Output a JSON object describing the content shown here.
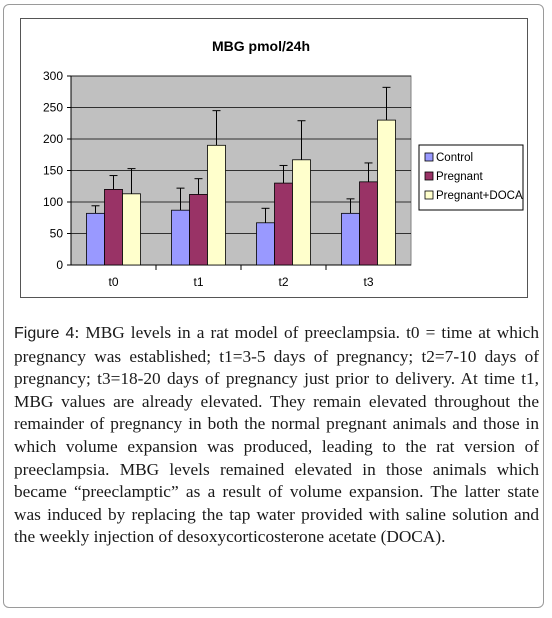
{
  "chart_data": {
    "type": "bar",
    "title": "MBG pmol/24h",
    "categories": [
      "t0",
      "t1",
      "t2",
      "t3"
    ],
    "series": [
      {
        "name": "Control",
        "color": "#9999ff",
        "values": [
          82,
          87,
          67,
          82
        ],
        "errors": [
          12,
          35,
          23,
          23
        ]
      },
      {
        "name": "Pregnant",
        "color": "#993366",
        "values": [
          120,
          112,
          130,
          132
        ],
        "errors": [
          22,
          25,
          28,
          30
        ]
      },
      {
        "name": "Pregnant+DOCA",
        "color": "#ffffcc",
        "values": [
          113,
          190,
          167,
          230
        ],
        "errors": [
          40,
          55,
          62,
          52
        ]
      }
    ],
    "ylim": [
      0,
      300
    ],
    "yticks": [
      0,
      50,
      100,
      150,
      200,
      250,
      300
    ],
    "plot_background": "#c0c0c0",
    "grid": true,
    "legend_position": "right"
  },
  "caption": {
    "label": "Figure 4",
    "text": ": MBG levels in a rat model of preeclampsia. t0 = time at which pregnancy was established; t1=3-5 days of pregnancy; t2=7-10 days of pregnancy; t3=18-20 days of pregnancy just prior to delivery. At time t1, MBG values are already elevated. They remain elevated throughout the remainder of pregnancy in both the normal pregnant animals and those in which volume expansion was produced, leading to the rat version of preeclampsia. MBG levels remained elevated in those animals which became “preeclamptic” as a result of volume expansion. The latter state was induced by replacing the tap water provided with saline solution and the weekly injection of desoxycorticosterone acetate (DOCA)."
  }
}
